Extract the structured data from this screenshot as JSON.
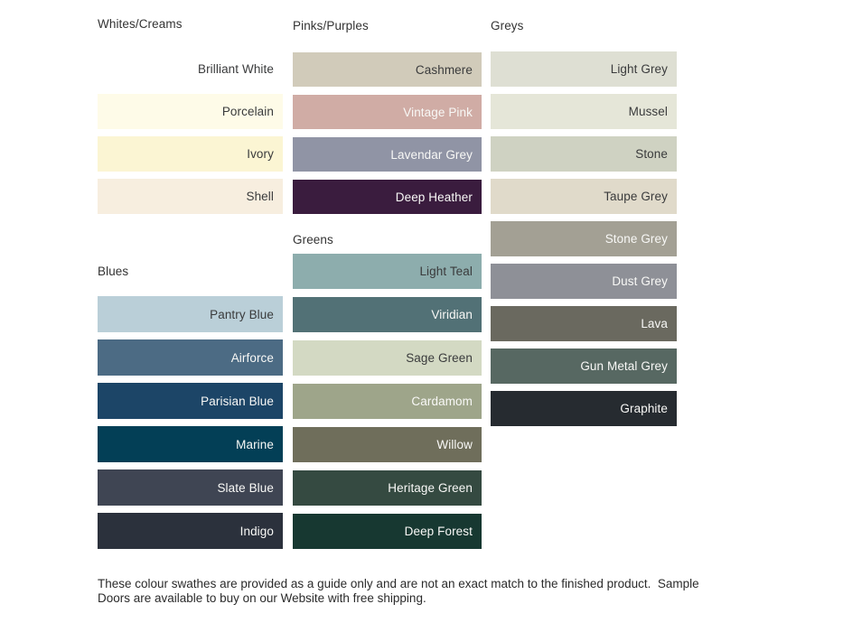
{
  "theme": {
    "background": "#ffffff",
    "heading_color": "#333333",
    "dark_label_color": "#3a3b3c",
    "light_label_color": "#f8f8f6",
    "footer_color": "#2b2b2b"
  },
  "groups": [
    {
      "title": "Whites/Creams",
      "swatches": [
        {
          "name": "Brilliant White",
          "color": "#ffffff",
          "label": "dark"
        },
        {
          "name": "Porcelain",
          "color": "#fefbe8",
          "label": "dark"
        },
        {
          "name": "Ivory",
          "color": "#fbf5d3",
          "label": "dark"
        },
        {
          "name": "Shell",
          "color": "#f7eedf",
          "label": "dark"
        }
      ]
    },
    {
      "title": "Blues",
      "swatches": [
        {
          "name": "Pantry Blue",
          "color": "#bacfd8",
          "label": "dark"
        },
        {
          "name": "Airforce",
          "color": "#4c6b84",
          "label": "light"
        },
        {
          "name": "Parisian Blue",
          "color": "#1c4567",
          "label": "light"
        },
        {
          "name": "Marine",
          "color": "#033f56",
          "label": "light"
        },
        {
          "name": "Slate Blue",
          "color": "#3f4553",
          "label": "light"
        },
        {
          "name": "Indigo",
          "color": "#2b313c",
          "label": "light"
        }
      ]
    },
    {
      "title": "Pinks/Purples",
      "swatches": [
        {
          "name": "Cashmere",
          "color": "#d1cbba",
          "label": "dark"
        },
        {
          "name": "Vintage Pink",
          "color": "#d0aca5",
          "label": "light"
        },
        {
          "name": "Lavendar Grey",
          "color": "#9094a5",
          "label": "light"
        },
        {
          "name": "Deep Heather",
          "color": "#3a1c3e",
          "label": "light"
        }
      ]
    },
    {
      "title": "Greens",
      "swatches": [
        {
          "name": "Light Teal",
          "color": "#8dadad",
          "label": "dark"
        },
        {
          "name": "Viridian",
          "color": "#527176",
          "label": "light"
        },
        {
          "name": "Sage Green",
          "color": "#d3d9c3",
          "label": "dark"
        },
        {
          "name": "Cardamom",
          "color": "#9ea58a",
          "label": "light"
        },
        {
          "name": "Willow",
          "color": "#6f6e5b",
          "label": "light"
        },
        {
          "name": "Heritage Green",
          "color": "#354a41",
          "label": "light"
        },
        {
          "name": "Deep Forest",
          "color": "#173831",
          "label": "light"
        }
      ]
    },
    {
      "title": "Greys",
      "swatches": [
        {
          "name": "Light Grey",
          "color": "#dedfd3",
          "label": "dark"
        },
        {
          "name": "Mussel",
          "color": "#e5e6d8",
          "label": "dark"
        },
        {
          "name": "Stone",
          "color": "#cfd2c2",
          "label": "dark"
        },
        {
          "name": "Taupe Grey",
          "color": "#e0daca",
          "label": "dark"
        },
        {
          "name": "Stone Grey",
          "color": "#a3a094",
          "label": "light"
        },
        {
          "name": "Dust Grey",
          "color": "#8e9097",
          "label": "light"
        },
        {
          "name": "Lava",
          "color": "#6a695f",
          "label": "light"
        },
        {
          "name": "Gun Metal Grey",
          "color": "#576862",
          "label": "light"
        },
        {
          "name": "Graphite",
          "color": "#262b30",
          "label": "light"
        }
      ]
    }
  ],
  "footer": {
    "lines": [
      "These colour swathes are provided as a guide only and are not an exact match to the finished product.  Sample",
      "Doors are available to buy on our Website with free shipping."
    ]
  }
}
